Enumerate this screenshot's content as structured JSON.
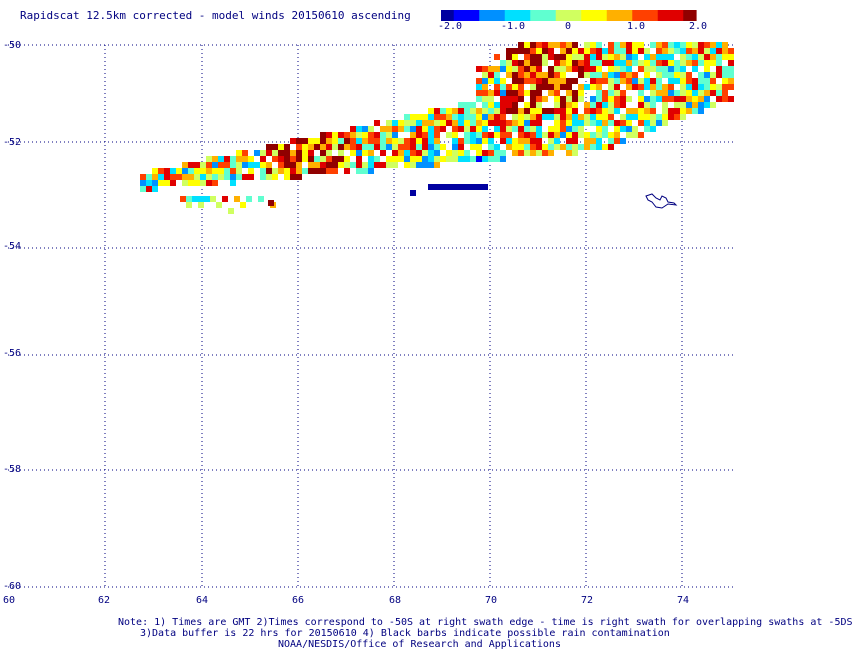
{
  "title": "Rapidscat 12.5km corrected - model winds 20150610 ascending",
  "colorbar": {
    "ticks": [
      "-2.0",
      "-1.0",
      "0",
      "1.0",
      "2.0"
    ],
    "range": [
      -2.0,
      2.0
    ],
    "colors": [
      "#0000a0",
      "#0000ff",
      "#0090ff",
      "#00e0ff",
      "#60ffd0",
      "#d0ff60",
      "#ffff00",
      "#ffb000",
      "#ff4000",
      "#e00000",
      "#900000"
    ]
  },
  "axes": {
    "y_labels": [
      "-50",
      "-52",
      "-54",
      "-56",
      "-58",
      "-60"
    ],
    "x_labels": [
      "60",
      "62",
      "64",
      "66",
      "68",
      "70",
      "72",
      "74"
    ]
  },
  "notes": {
    "line1": "Note: 1) Times are GMT 2)Times correspond to -50S at right swath edge - time is right swath for overlapping swaths at -5DS",
    "line2": "3)Data buffer is 22 hrs for 20150610 4) Black barbs indicate possible rain contamination",
    "line3": "NOAA/NESDIS/Office of Research and Applications"
  }
}
